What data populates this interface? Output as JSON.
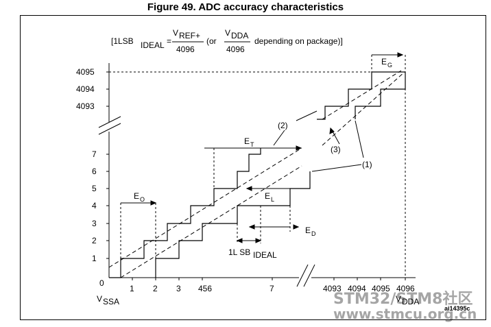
{
  "title": "Figure 49. ADC accuracy characteristics",
  "formula": {
    "open": "[1LSB",
    "ideal": "IDEAL",
    "equals": "=",
    "num1_v": "V",
    "num1_sub": "REF+",
    "den1": "4096",
    "or": "(or",
    "num2_v": "V",
    "num2_sub": "DDA",
    "den2": "4096",
    "tail": "depending on package)]"
  },
  "y_ticks_top": [
    "4095",
    "4094",
    "4093"
  ],
  "y_ticks_bottom": [
    "7",
    "6",
    "5",
    "4",
    "3",
    "2",
    "1"
  ],
  "x_ticks": {
    "zero": "0",
    "t1": "1",
    "t2": "2",
    "t3": "3",
    "t456": "456",
    "t7": "7",
    "t4093": "4093",
    "t4094": "4094",
    "t4095": "4095",
    "t4096": "4096"
  },
  "vssa": {
    "v": "V",
    "sub": "SSA"
  },
  "vdda": {
    "v": "V",
    "sub": "DDA"
  },
  "labels": {
    "eg": "E",
    "eg_sub": "G",
    "et": "E",
    "et_sub": "T",
    "eo": "E",
    "eo_sub": "O",
    "el": "E",
    "el_sub": "L",
    "ed": "E",
    "ed_sub": "D",
    "lsb": "1L  SB",
    "lsb_sub": "IDEAL",
    "c1": "(1)",
    "c2": "(2)",
    "c3": "(3)"
  },
  "ref_code": "ai14395c",
  "watermark": {
    "line1": "STM32/STM8社区",
    "line2": "www.stmcu.org.cn"
  }
}
